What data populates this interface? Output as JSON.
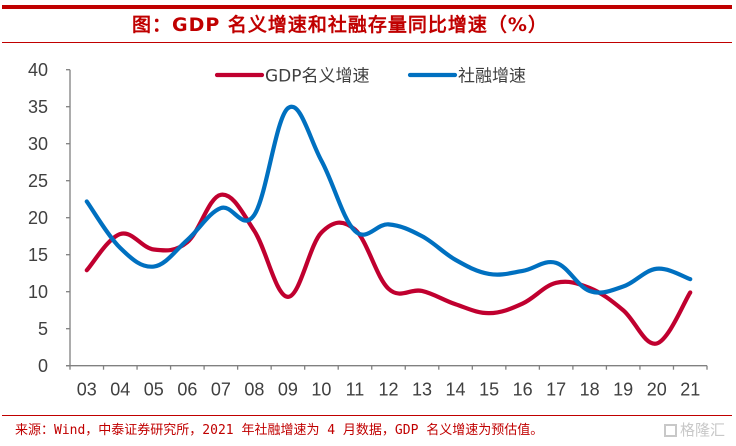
{
  "title": "图：GDP 名义增速和社融存量同比增速（%）",
  "source": "来源：Wind，中泰证券研究所，2021 年社融增速为 4 月数据，GDP 名义增速为预估值。",
  "watermark": "格隆汇",
  "colors": {
    "accent": "#C00000",
    "gdp": "#C0002F",
    "social_financing": "#0070C0",
    "axis": "#808080",
    "tick_text": "#404040"
  },
  "chart_data": {
    "type": "line",
    "title": "GDP 名义增速和社融存量同比增速（%）",
    "xlabel": "",
    "ylabel": "",
    "categories": [
      "03",
      "04",
      "05",
      "06",
      "07",
      "08",
      "09",
      "10",
      "11",
      "12",
      "13",
      "14",
      "15",
      "16",
      "17",
      "18",
      "19",
      "20",
      "21"
    ],
    "ylim": [
      0,
      40
    ],
    "yticks": [
      0,
      5,
      10,
      15,
      20,
      25,
      30,
      35,
      40
    ],
    "grid": false,
    "smooth": true,
    "legend_position": "top-center",
    "series": [
      {
        "name": "GDP名义增速",
        "color": "#C0002F",
        "values": [
          12.9,
          17.8,
          15.7,
          16.7,
          23.1,
          18.2,
          9.3,
          18.0,
          18.4,
          10.4,
          10.1,
          8.3,
          7.1,
          8.4,
          11.2,
          10.5,
          7.5,
          3.0,
          9.9
        ]
      },
      {
        "name": "社融增速",
        "color": "#0070C0",
        "values": [
          22.2,
          15.9,
          13.4,
          17.0,
          21.3,
          20.4,
          34.8,
          27.7,
          18.2,
          19.1,
          17.5,
          14.3,
          12.4,
          12.8,
          13.9,
          10.1,
          10.7,
          13.1,
          11.7
        ]
      }
    ]
  }
}
